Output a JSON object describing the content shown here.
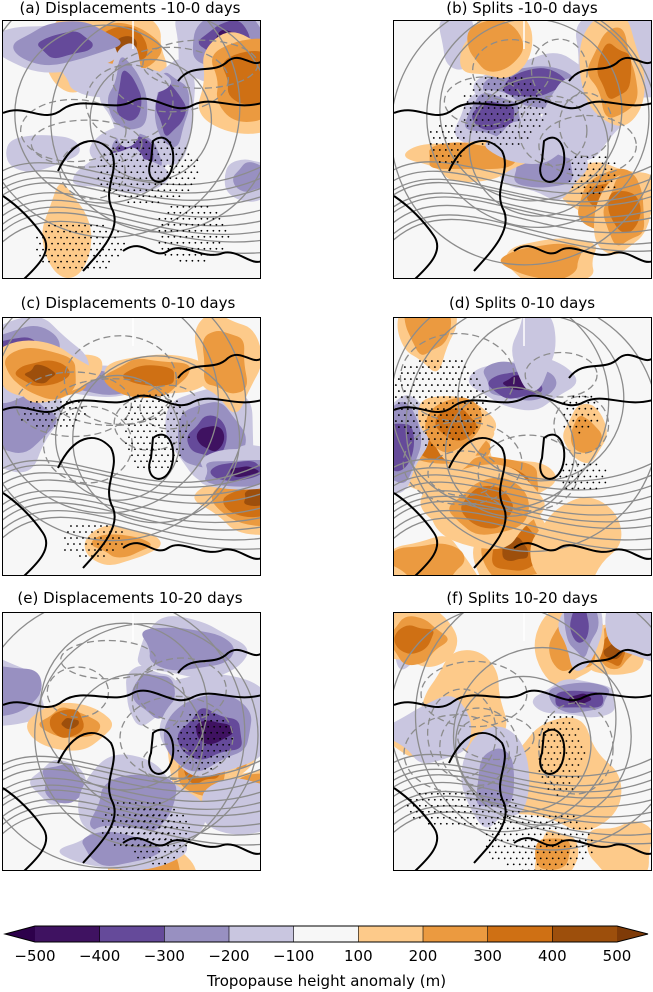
{
  "panels": [
    {
      "id": "a",
      "title": "(a) Displacements -10-0 days",
      "seed": 11
    },
    {
      "id": "b",
      "title": "(b) Splits -10-0 days",
      "seed": 23
    },
    {
      "id": "c",
      "title": "(c) Displacements 0-10 days",
      "seed": 37
    },
    {
      "id": "d",
      "title": "(d) Splits 0-10 days",
      "seed": 41
    },
    {
      "id": "e",
      "title": "(e) Displacements 10-20 days",
      "seed": 53
    },
    {
      "id": "f",
      "title": "(f) Splits 10-20 days",
      "seed": 67
    }
  ],
  "colorbar": {
    "title": "Tropopause height anomaly (m)",
    "ticks": [
      "−500",
      "−400",
      "−300",
      "−200",
      "−100",
      "100",
      "200",
      "300",
      "400",
      "500"
    ],
    "colors": [
      "#3f1261",
      "#654a9a",
      "#9890c1",
      "#c9c6e0",
      "#f7f7f7",
      "#fdca8a",
      "#eb9a40",
      "#cf7014",
      "#9d4f0c"
    ],
    "extend_min_color": "#2d004b",
    "extend_max_color": "#7f3b08"
  }
}
